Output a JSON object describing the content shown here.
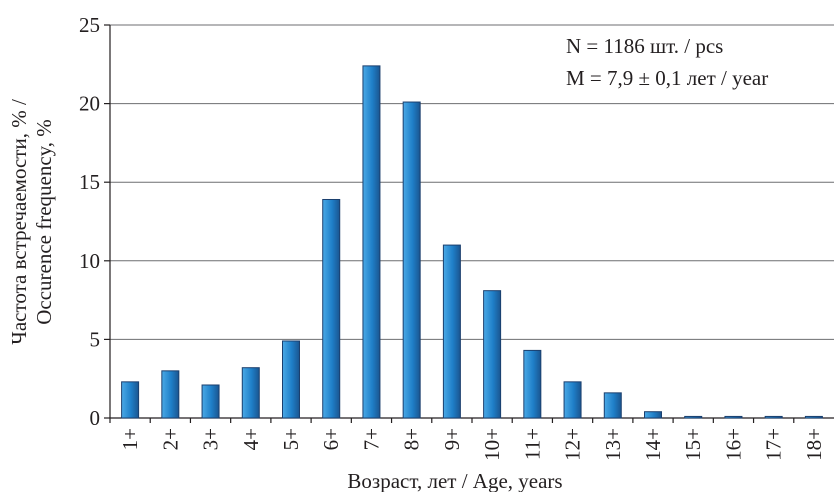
{
  "chart_data": {
    "type": "bar",
    "categories": [
      "1+",
      "2+",
      "3+",
      "4+",
      "5+",
      "6+",
      "7+",
      "8+",
      "9+",
      "10+",
      "11+",
      "12+",
      "13+",
      "14+",
      "15+",
      "16+",
      "17+",
      "18+"
    ],
    "values": [
      2.3,
      3.0,
      2.1,
      3.2,
      4.9,
      13.9,
      22.4,
      20.1,
      11.0,
      8.1,
      4.3,
      2.3,
      1.6,
      0.4,
      0.1,
      0.1,
      0.1,
      0.1
    ],
    "xlabel": "Возраст, лет / Age, years",
    "ylabel_line1": "Частота встречаемости, % /",
    "ylabel_line2": "Occurence frequency, %",
    "ylim": [
      0,
      25
    ],
    "yticks": [
      0,
      5,
      10,
      15,
      20,
      25
    ],
    "annotations": [
      "N = 1186 шт. / pcs",
      "M = 7,9 ± 0,1 лет / year"
    ],
    "grid": "horizontal",
    "colors": {
      "bar_light": "#2f93d6",
      "bar_dark": "#1f5e9c",
      "grid": "#6d6e71"
    }
  }
}
